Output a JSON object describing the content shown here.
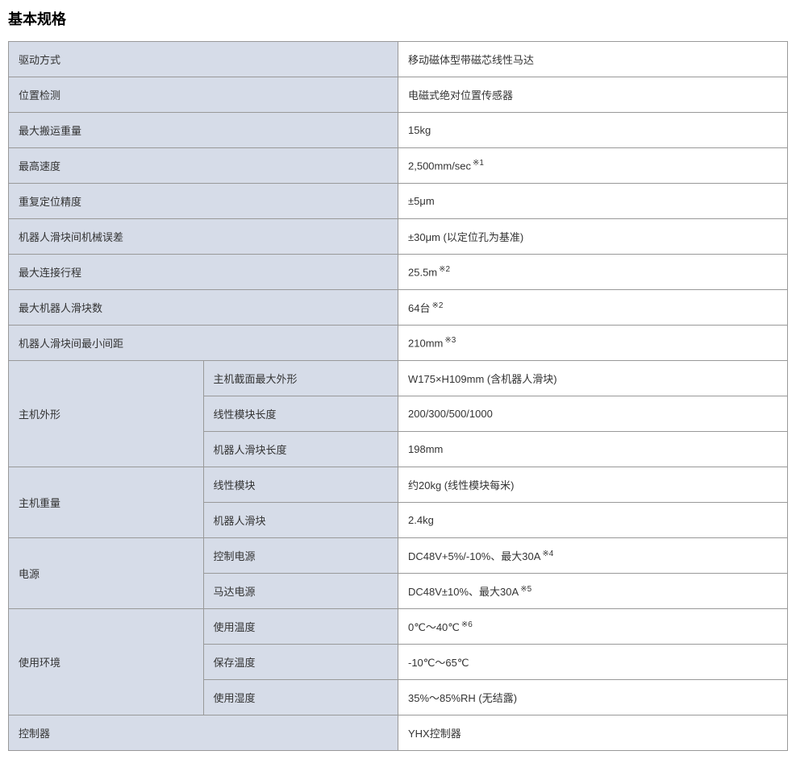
{
  "title": "基本规格",
  "colors": {
    "label_bg": "#d6dce8",
    "value_bg": "#ffffff",
    "border": "#999999",
    "text": "#333333",
    "title_text": "#000000"
  },
  "rows": {
    "drive_method": {
      "label": "驱动方式",
      "value": "移动磁体型带磁芯线性马达"
    },
    "position_detect": {
      "label": "位置检测",
      "value": "电磁式绝对位置传感器"
    },
    "max_payload": {
      "label": "最大搬运重量",
      "value": "15kg"
    },
    "max_speed": {
      "label": "最高速度",
      "value": "2,500mm/sec",
      "sup": "※1"
    },
    "repeat_precision": {
      "label": "重复定位精度",
      "value": "±5μm"
    },
    "mechanical_error": {
      "label": "机器人滑块间机械误差",
      "value": "±30μm (以定位孔为基准)"
    },
    "max_stroke": {
      "label": "最大连接行程",
      "value": "25.5m",
      "sup": "※2"
    },
    "max_sliders": {
      "label": "最大机器人滑块数",
      "value": "64台",
      "sup": "※2"
    },
    "min_interval": {
      "label": "机器人滑块间最小间距",
      "value": "210mm",
      "sup": "※3"
    },
    "profile": {
      "label": "主机外形",
      "sub1": {
        "label": "主机截面最大外形",
        "value": "W175×H109mm (含机器人滑块)"
      },
      "sub2": {
        "label": "线性模块长度",
        "value": "200/300/500/1000"
      },
      "sub3": {
        "label": "机器人滑块长度",
        "value": "198mm"
      }
    },
    "weight": {
      "label": "主机重量",
      "sub1": {
        "label": "线性模块",
        "value": "约20kg (线性模块每米)"
      },
      "sub2": {
        "label": "机器人滑块",
        "value": "2.4kg"
      }
    },
    "power": {
      "label": "电源",
      "sub1": {
        "label": "控制电源",
        "value": "DC48V+5%/-10%、最大30A",
        "sup": "※4"
      },
      "sub2": {
        "label": "马达电源",
        "value": "DC48V±10%、最大30A",
        "sup": "※5"
      }
    },
    "environment": {
      "label": "使用环境",
      "sub1": {
        "label": "使用温度",
        "value": "0℃～40℃",
        "sup": "※6"
      },
      "sub2": {
        "label": "保存温度",
        "value": "-10℃～65℃"
      },
      "sub3": {
        "label": "使用湿度",
        "value": "35%～85%RH (无结露)"
      }
    },
    "controller": {
      "label": "控制器",
      "value": "YHX控制器"
    }
  }
}
